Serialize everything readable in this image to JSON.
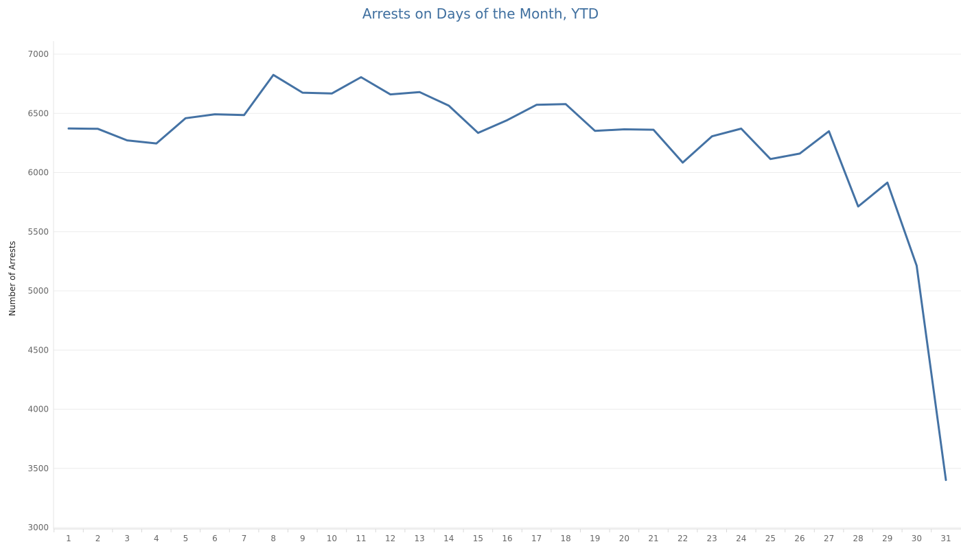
{
  "chart_data": {
    "type": "line",
    "title": "Arrests on Days of the Month, YTD",
    "xlabel": "",
    "ylabel": "Number of Arrests",
    "categories": [
      "1",
      "2",
      "3",
      "4",
      "5",
      "6",
      "7",
      "8",
      "9",
      "10",
      "11",
      "12",
      "13",
      "14",
      "15",
      "16",
      "17",
      "18",
      "19",
      "20",
      "21",
      "22",
      "23",
      "24",
      "25",
      "26",
      "27",
      "28",
      "29",
      "30",
      "31"
    ],
    "series": [
      {
        "values": [
          6372,
          6369,
          6272,
          6246,
          6459,
          6492,
          6485,
          6825,
          6675,
          6668,
          6806,
          6660,
          6680,
          6565,
          6335,
          6443,
          6572,
          6578,
          6352,
          6365,
          6362,
          6084,
          6306,
          6371,
          6114,
          6160,
          6349,
          5713,
          5915,
          5213,
          3402
        ]
      }
    ],
    "ylim": [
      3000,
      7000
    ],
    "yticks": [
      3000,
      3500,
      4000,
      4500,
      5000,
      5500,
      6000,
      6500,
      7000
    ],
    "grid": true,
    "line_color": "#4472a4"
  }
}
